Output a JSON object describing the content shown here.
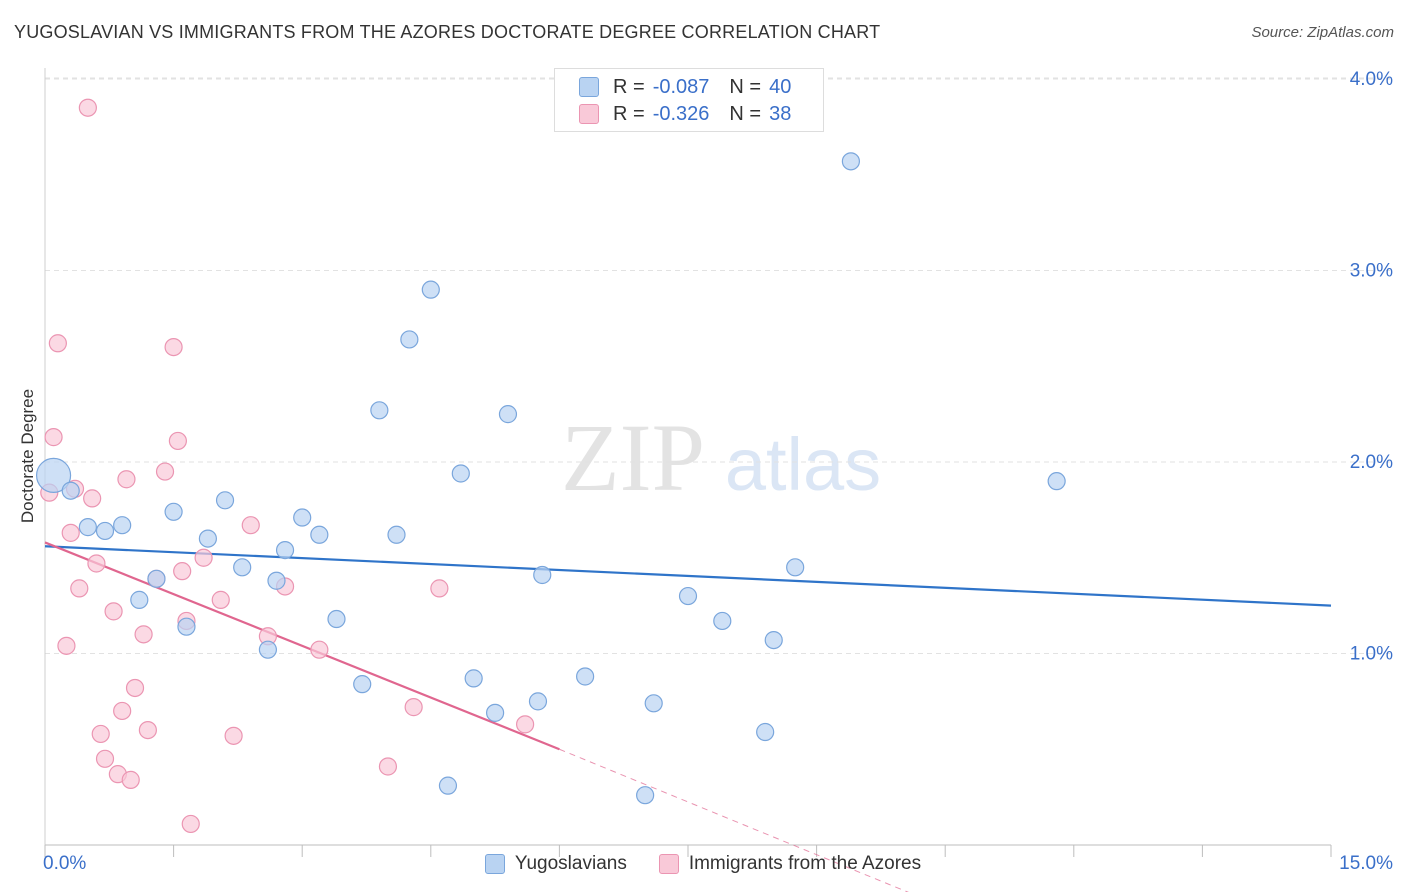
{
  "title": "YUGOSLAVIAN VS IMMIGRANTS FROM THE AZORES DOCTORATE DEGREE CORRELATION CHART",
  "source": "Source: ZipAtlas.com",
  "watermark": {
    "zip": "ZIP",
    "atlas": "atlas"
  },
  "colors": {
    "blue_fill": "#b9d3f2",
    "blue_stroke": "#7aa6dc",
    "blue_line": "#2f74c9",
    "pink_fill": "#f9c9d8",
    "pink_stroke": "#eb95b2",
    "pink_line": "#e0668f",
    "axis_text": "#3a6fc9",
    "grid": "#e2e2e2"
  },
  "legend": {
    "r_label": "R =",
    "n_label": "N =",
    "rows": [
      {
        "r": "-0.087",
        "n": "40"
      },
      {
        "r": "-0.326",
        "n": "38"
      }
    ]
  },
  "chart_data": {
    "type": "scatter",
    "title": "YUGOSLAVIAN VS IMMIGRANTS FROM THE AZORES DOCTORATE DEGREE CORRELATION CHART",
    "xlabel": "",
    "ylabel": "Doctorate Degree",
    "xlim": [
      0,
      15
    ],
    "ylim": [
      0,
      4.1
    ],
    "x_tick_labels": [
      "0.0%",
      "15.0%"
    ],
    "y_ticks": [
      1,
      2,
      3,
      4
    ],
    "y_tick_labels": [
      "1.0%",
      "2.0%",
      "3.0%",
      "4.0%"
    ],
    "grid": true,
    "legend_position": "top-center",
    "series": [
      {
        "name": "Yugoslavians",
        "r": -0.087,
        "n": 40,
        "trend": {
          "x": [
            0,
            15
          ],
          "y": [
            1.56,
            1.25
          ]
        },
        "points": [
          {
            "x": 0.1,
            "y": 1.93,
            "big": true
          },
          {
            "x": 0.3,
            "y": 1.85
          },
          {
            "x": 0.5,
            "y": 1.66
          },
          {
            "x": 0.7,
            "y": 1.64
          },
          {
            "x": 0.9,
            "y": 1.67
          },
          {
            "x": 1.1,
            "y": 1.28
          },
          {
            "x": 1.3,
            "y": 1.39
          },
          {
            "x": 1.5,
            "y": 1.74
          },
          {
            "x": 1.65,
            "y": 1.14
          },
          {
            "x": 1.9,
            "y": 1.6
          },
          {
            "x": 2.1,
            "y": 1.8
          },
          {
            "x": 2.3,
            "y": 1.45
          },
          {
            "x": 2.6,
            "y": 1.02
          },
          {
            "x": 2.8,
            "y": 1.54
          },
          {
            "x": 2.7,
            "y": 1.38
          },
          {
            "x": 3.0,
            "y": 1.71
          },
          {
            "x": 3.2,
            "y": 1.62
          },
          {
            "x": 3.4,
            "y": 1.18
          },
          {
            "x": 3.7,
            "y": 0.84
          },
          {
            "x": 3.9,
            "y": 2.27
          },
          {
            "x": 4.1,
            "y": 1.62
          },
          {
            "x": 4.25,
            "y": 2.64
          },
          {
            "x": 4.5,
            "y": 2.9
          },
          {
            "x": 4.7,
            "y": 0.31
          },
          {
            "x": 4.85,
            "y": 1.94
          },
          {
            "x": 5.0,
            "y": 0.87
          },
          {
            "x": 5.25,
            "y": 0.69
          },
          {
            "x": 5.4,
            "y": 2.25
          },
          {
            "x": 5.75,
            "y": 0.75
          },
          {
            "x": 5.8,
            "y": 1.41
          },
          {
            "x": 6.3,
            "y": 0.88
          },
          {
            "x": 7.0,
            "y": 0.26
          },
          {
            "x": 7.1,
            "y": 0.74
          },
          {
            "x": 7.5,
            "y": 1.3
          },
          {
            "x": 7.9,
            "y": 1.17
          },
          {
            "x": 8.4,
            "y": 0.59
          },
          {
            "x": 8.5,
            "y": 1.07
          },
          {
            "x": 8.75,
            "y": 1.45
          },
          {
            "x": 9.4,
            "y": 3.57
          },
          {
            "x": 11.8,
            "y": 1.9
          }
        ]
      },
      {
        "name": "Immigrants from the Azores",
        "r": -0.326,
        "n": 38,
        "trend": {
          "x": [
            0,
            6
          ],
          "y": [
            1.58,
            0.5
          ]
        },
        "trend_dashed": {
          "x": [
            6,
            10.25
          ],
          "y": [
            0.5,
            -0.28
          ]
        },
        "points": [
          {
            "x": 0.05,
            "y": 1.84
          },
          {
            "x": 0.1,
            "y": 2.13
          },
          {
            "x": 0.15,
            "y": 2.62
          },
          {
            "x": 0.25,
            "y": 1.04
          },
          {
            "x": 0.3,
            "y": 1.63
          },
          {
            "x": 0.35,
            "y": 1.86
          },
          {
            "x": 0.4,
            "y": 1.34
          },
          {
            "x": 0.5,
            "y": 3.85
          },
          {
            "x": 0.55,
            "y": 1.81
          },
          {
            "x": 0.6,
            "y": 1.47
          },
          {
            "x": 0.65,
            "y": 0.58
          },
          {
            "x": 0.7,
            "y": 0.45
          },
          {
            "x": 0.8,
            "y": 1.22
          },
          {
            "x": 0.85,
            "y": 0.37
          },
          {
            "x": 0.9,
            "y": 0.7
          },
          {
            "x": 0.95,
            "y": 1.91
          },
          {
            "x": 1.0,
            "y": 0.34
          },
          {
            "x": 1.05,
            "y": 0.82
          },
          {
            "x": 1.15,
            "y": 1.1
          },
          {
            "x": 1.2,
            "y": 0.6
          },
          {
            "x": 1.3,
            "y": 1.39
          },
          {
            "x": 1.4,
            "y": 1.95
          },
          {
            "x": 1.5,
            "y": 2.6
          },
          {
            "x": 1.55,
            "y": 2.11
          },
          {
            "x": 1.6,
            "y": 1.43
          },
          {
            "x": 1.65,
            "y": 1.17
          },
          {
            "x": 1.7,
            "y": 0.11
          },
          {
            "x": 1.85,
            "y": 1.5
          },
          {
            "x": 2.05,
            "y": 1.28
          },
          {
            "x": 2.2,
            "y": 0.57
          },
          {
            "x": 2.4,
            "y": 1.67
          },
          {
            "x": 2.6,
            "y": 1.09
          },
          {
            "x": 2.8,
            "y": 1.35
          },
          {
            "x": 3.2,
            "y": 1.02
          },
          {
            "x": 4.0,
            "y": 0.41
          },
          {
            "x": 4.3,
            "y": 0.72
          },
          {
            "x": 4.6,
            "y": 1.34
          },
          {
            "x": 5.6,
            "y": 0.63
          }
        ]
      }
    ]
  }
}
